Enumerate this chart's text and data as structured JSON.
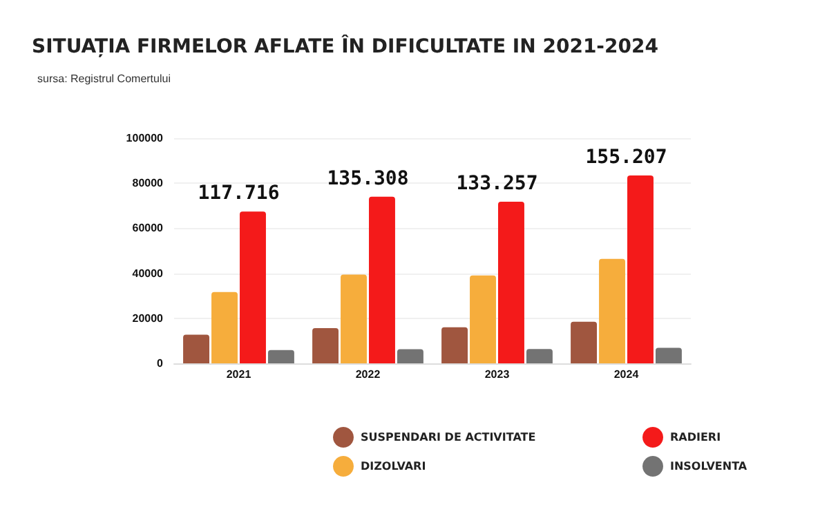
{
  "chart_data": {
    "type": "bar",
    "title": "SITUAȚIA FIRMELOR AFLATE ÎN DIFICULTATE IN 2021-2024",
    "annotations": [
      "sursa: Registrul Comertului"
    ],
    "categories": [
      "2021",
      "2022",
      "2023",
      "2024"
    ],
    "series": [
      {
        "name": "SUSPENDARI DE ACTIVITATE",
        "color": "#a0563f",
        "values": [
          12716,
          15608,
          16057,
          18507
        ]
      },
      {
        "name": "DIZOLVARI",
        "color": "#f6ad3c",
        "values": [
          31700,
          39400,
          39000,
          46400
        ]
      },
      {
        "name": "RADIERI",
        "color": "#f41a1a",
        "values": [
          67400,
          74000,
          71800,
          83400
        ]
      },
      {
        "name": "INSOLVENTA",
        "color": "#737373",
        "values": [
          5900,
          6300,
          6400,
          6900
        ]
      }
    ],
    "totals": [
      "117.716",
      "135.308",
      "133.257",
      "155.207"
    ],
    "ylim": [
      0,
      100000
    ],
    "yticks": [
      0,
      20000,
      40000,
      60000,
      80000,
      100000
    ],
    "grid": "y",
    "legend": "bottom"
  }
}
